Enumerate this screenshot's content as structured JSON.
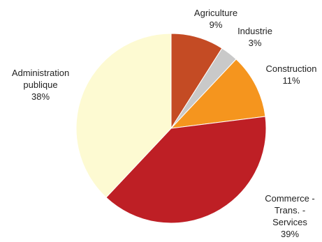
{
  "chart_data": {
    "type": "pie",
    "title": "",
    "slices": [
      {
        "label_lines": [
          "Agriculture"
        ],
        "value": 9,
        "value_label": "9%",
        "color": "#c44b24"
      },
      {
        "label_lines": [
          "Industrie"
        ],
        "value": 3,
        "value_label": "3%",
        "color": "#c9c9c9"
      },
      {
        "label_lines": [
          "Construction"
        ],
        "value": 11,
        "value_label": "11%",
        "color": "#f5951e"
      },
      {
        "label_lines": [
          "Commerce -",
          "Trans. -",
          "Services"
        ],
        "value": 39,
        "value_label": "39%",
        "color": "#be1f25"
      },
      {
        "label_lines": [
          "Administration",
          "publique"
        ],
        "value": 38,
        "value_label": "38%",
        "color": "#fdfad2"
      }
    ],
    "start_angle_deg": 0,
    "direction": "clockwise",
    "legend": "none"
  }
}
